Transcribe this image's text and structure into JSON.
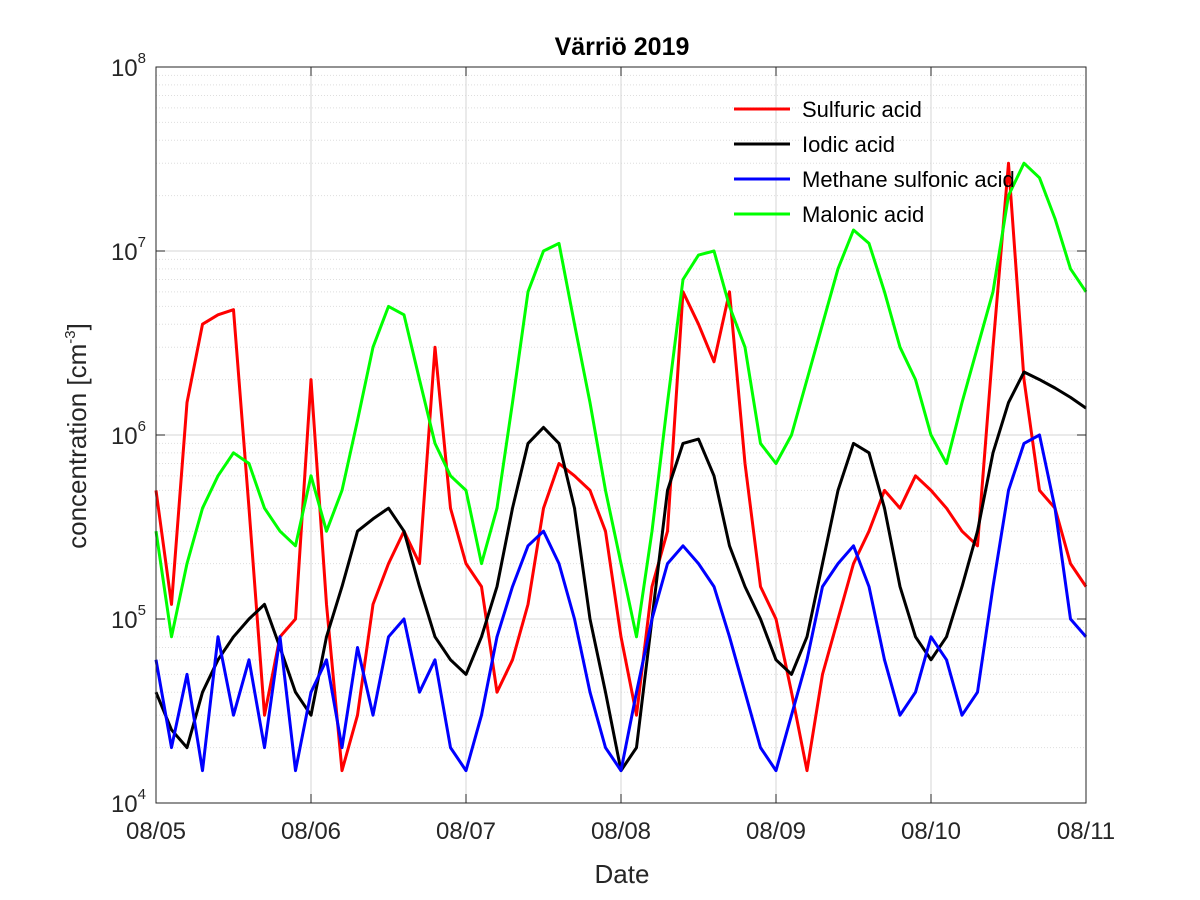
{
  "chart_data": {
    "type": "line",
    "title": "Värriö 2019",
    "xlabel": "Date",
    "ylabel": "concentration [cm",
    "ylabel_exponent": "-3",
    "ylabel_close": "]",
    "yscale": "log",
    "ylim": [
      10000,
      100000000
    ],
    "xlim": [
      0,
      6
    ],
    "xticks": [
      {
        "x": 0,
        "label": "08/05"
      },
      {
        "x": 1,
        "label": "08/06"
      },
      {
        "x": 2,
        "label": "08/07"
      },
      {
        "x": 3,
        "label": "08/08"
      },
      {
        "x": 4,
        "label": "08/09"
      },
      {
        "x": 5,
        "label": "08/10"
      },
      {
        "x": 6,
        "label": "08/11"
      }
    ],
    "yticks": [
      {
        "value": 10000,
        "base": "10",
        "exp": "4"
      },
      {
        "value": 100000,
        "base": "10",
        "exp": "5"
      },
      {
        "value": 1000000,
        "base": "10",
        "exp": "6"
      },
      {
        "value": 10000000,
        "base": "10",
        "exp": "7"
      },
      {
        "value": 100000000,
        "base": "10",
        "exp": "8"
      }
    ],
    "grid": true,
    "legend_position": "top-right",
    "series": [
      {
        "name": "Sulfuric acid",
        "color": "#ff0000",
        "x": [
          0,
          0.1,
          0.2,
          0.3,
          0.4,
          0.5,
          0.6,
          0.7,
          0.8,
          0.9,
          1,
          1.1,
          1.2,
          1.3,
          1.4,
          1.5,
          1.6,
          1.7,
          1.8,
          1.9,
          2,
          2.1,
          2.2,
          2.3,
          2.4,
          2.5,
          2.6,
          2.7,
          2.8,
          2.9,
          3,
          3.1,
          3.2,
          3.3,
          3.4,
          3.5,
          3.6,
          3.7,
          3.8,
          3.9,
          4,
          4.1,
          4.2,
          4.3,
          4.4,
          4.5,
          4.6,
          4.7,
          4.8,
          4.9,
          5,
          5.1,
          5.2,
          5.3,
          5.4,
          5.5,
          5.6,
          5.7,
          5.8,
          5.9,
          6
        ],
        "values": [
          500000,
          120000,
          1500000,
          4000000,
          4500000,
          4800000,
          400000,
          30000,
          80000,
          100000,
          2000000,
          120000,
          15000,
          30000,
          120000,
          200000,
          300000,
          200000,
          3000000,
          400000,
          200000,
          150000,
          40000,
          60000,
          120000,
          400000,
          700000,
          600000,
          500000,
          300000,
          80000,
          30000,
          150000,
          300000,
          6000000,
          4000000,
          2500000,
          6000000,
          700000,
          150000,
          100000,
          40000,
          15000,
          50000,
          100000,
          200000,
          300000,
          500000,
          400000,
          600000,
          500000,
          400000,
          300000,
          250000,
          3000000,
          30000000,
          2000000,
          500000,
          400000,
          200000,
          150000
        ]
      },
      {
        "name": "Iodic acid",
        "color": "#000000",
        "x": [
          0,
          0.1,
          0.2,
          0.3,
          0.4,
          0.5,
          0.6,
          0.7,
          0.8,
          0.9,
          1,
          1.1,
          1.2,
          1.3,
          1.4,
          1.5,
          1.6,
          1.7,
          1.8,
          1.9,
          2,
          2.1,
          2.2,
          2.3,
          2.4,
          2.5,
          2.6,
          2.7,
          2.8,
          2.9,
          3,
          3.1,
          3.2,
          3.3,
          3.4,
          3.5,
          3.6,
          3.7,
          3.8,
          3.9,
          4,
          4.1,
          4.2,
          4.3,
          4.4,
          4.5,
          4.6,
          4.7,
          4.8,
          4.9,
          5,
          5.1,
          5.2,
          5.3,
          5.4,
          5.5,
          5.6,
          5.7,
          5.8,
          5.9,
          6
        ],
        "values": [
          40000,
          25000,
          20000,
          40000,
          60000,
          80000,
          100000,
          120000,
          70000,
          40000,
          30000,
          80000,
          150000,
          300000,
          350000,
          400000,
          300000,
          150000,
          80000,
          60000,
          50000,
          80000,
          150000,
          400000,
          900000,
          1100000,
          900000,
          400000,
          100000,
          40000,
          15000,
          20000,
          100000,
          500000,
          900000,
          950000,
          600000,
          250000,
          150000,
          100000,
          60000,
          50000,
          80000,
          200000,
          500000,
          900000,
          800000,
          400000,
          150000,
          80000,
          60000,
          80000,
          150000,
          300000,
          800000,
          1500000,
          2200000,
          2000000,
          1800000,
          1600000,
          1400000
        ]
      },
      {
        "name": "Methane sulfonic acid",
        "color": "#0000ff",
        "x": [
          0,
          0.1,
          0.2,
          0.3,
          0.4,
          0.5,
          0.6,
          0.7,
          0.8,
          0.9,
          1,
          1.1,
          1.2,
          1.3,
          1.4,
          1.5,
          1.6,
          1.7,
          1.8,
          1.9,
          2,
          2.1,
          2.2,
          2.3,
          2.4,
          2.5,
          2.6,
          2.7,
          2.8,
          2.9,
          3,
          3.1,
          3.2,
          3.3,
          3.4,
          3.5,
          3.6,
          3.7,
          3.8,
          3.9,
          4,
          4.1,
          4.2,
          4.3,
          4.4,
          4.5,
          4.6,
          4.7,
          4.8,
          4.9,
          5,
          5.1,
          5.2,
          5.3,
          5.4,
          5.5,
          5.6,
          5.7,
          5.8,
          5.9,
          6
        ],
        "values": [
          60000,
          20000,
          50000,
          15000,
          80000,
          30000,
          60000,
          20000,
          80000,
          15000,
          40000,
          60000,
          20000,
          70000,
          30000,
          80000,
          100000,
          40000,
          60000,
          20000,
          15000,
          30000,
          80000,
          150000,
          250000,
          300000,
          200000,
          100000,
          40000,
          20000,
          15000,
          40000,
          100000,
          200000,
          250000,
          200000,
          150000,
          80000,
          40000,
          20000,
          15000,
          30000,
          60000,
          150000,
          200000,
          250000,
          150000,
          60000,
          30000,
          40000,
          80000,
          60000,
          30000,
          40000,
          150000,
          500000,
          900000,
          1000000,
          400000,
          100000,
          80000
        ]
      },
      {
        "name": "Malonic acid",
        "color": "#00ff00",
        "x": [
          0,
          0.1,
          0.2,
          0.3,
          0.4,
          0.5,
          0.6,
          0.7,
          0.8,
          0.9,
          1,
          1.1,
          1.2,
          1.3,
          1.4,
          1.5,
          1.6,
          1.7,
          1.8,
          1.9,
          2,
          2.1,
          2.2,
          2.3,
          2.4,
          2.5,
          2.6,
          2.7,
          2.8,
          2.9,
          3,
          3.1,
          3.2,
          3.3,
          3.4,
          3.5,
          3.6,
          3.7,
          3.8,
          3.9,
          4,
          4.1,
          4.2,
          4.3,
          4.4,
          4.5,
          4.6,
          4.7,
          4.8,
          4.9,
          5,
          5.1,
          5.2,
          5.3,
          5.4,
          5.5,
          5.6,
          5.7,
          5.8,
          5.9,
          6
        ],
        "values": [
          300000,
          80000,
          200000,
          400000,
          600000,
          800000,
          700000,
          400000,
          300000,
          250000,
          600000,
          300000,
          500000,
          1200000,
          3000000,
          5000000,
          4500000,
          2000000,
          900000,
          600000,
          500000,
          200000,
          400000,
          1500000,
          6000000,
          10000000,
          11000000,
          4000000,
          1500000,
          500000,
          200000,
          80000,
          300000,
          1500000,
          7000000,
          9500000,
          10000000,
          5000000,
          3000000,
          900000,
          700000,
          1000000,
          2000000,
          4000000,
          8000000,
          13000000,
          11000000,
          6000000,
          3000000,
          2000000,
          1000000,
          700000,
          1500000,
          3000000,
          6000000,
          20000000,
          30000000,
          25000000,
          15000000,
          8000000,
          6000000
        ]
      }
    ]
  }
}
